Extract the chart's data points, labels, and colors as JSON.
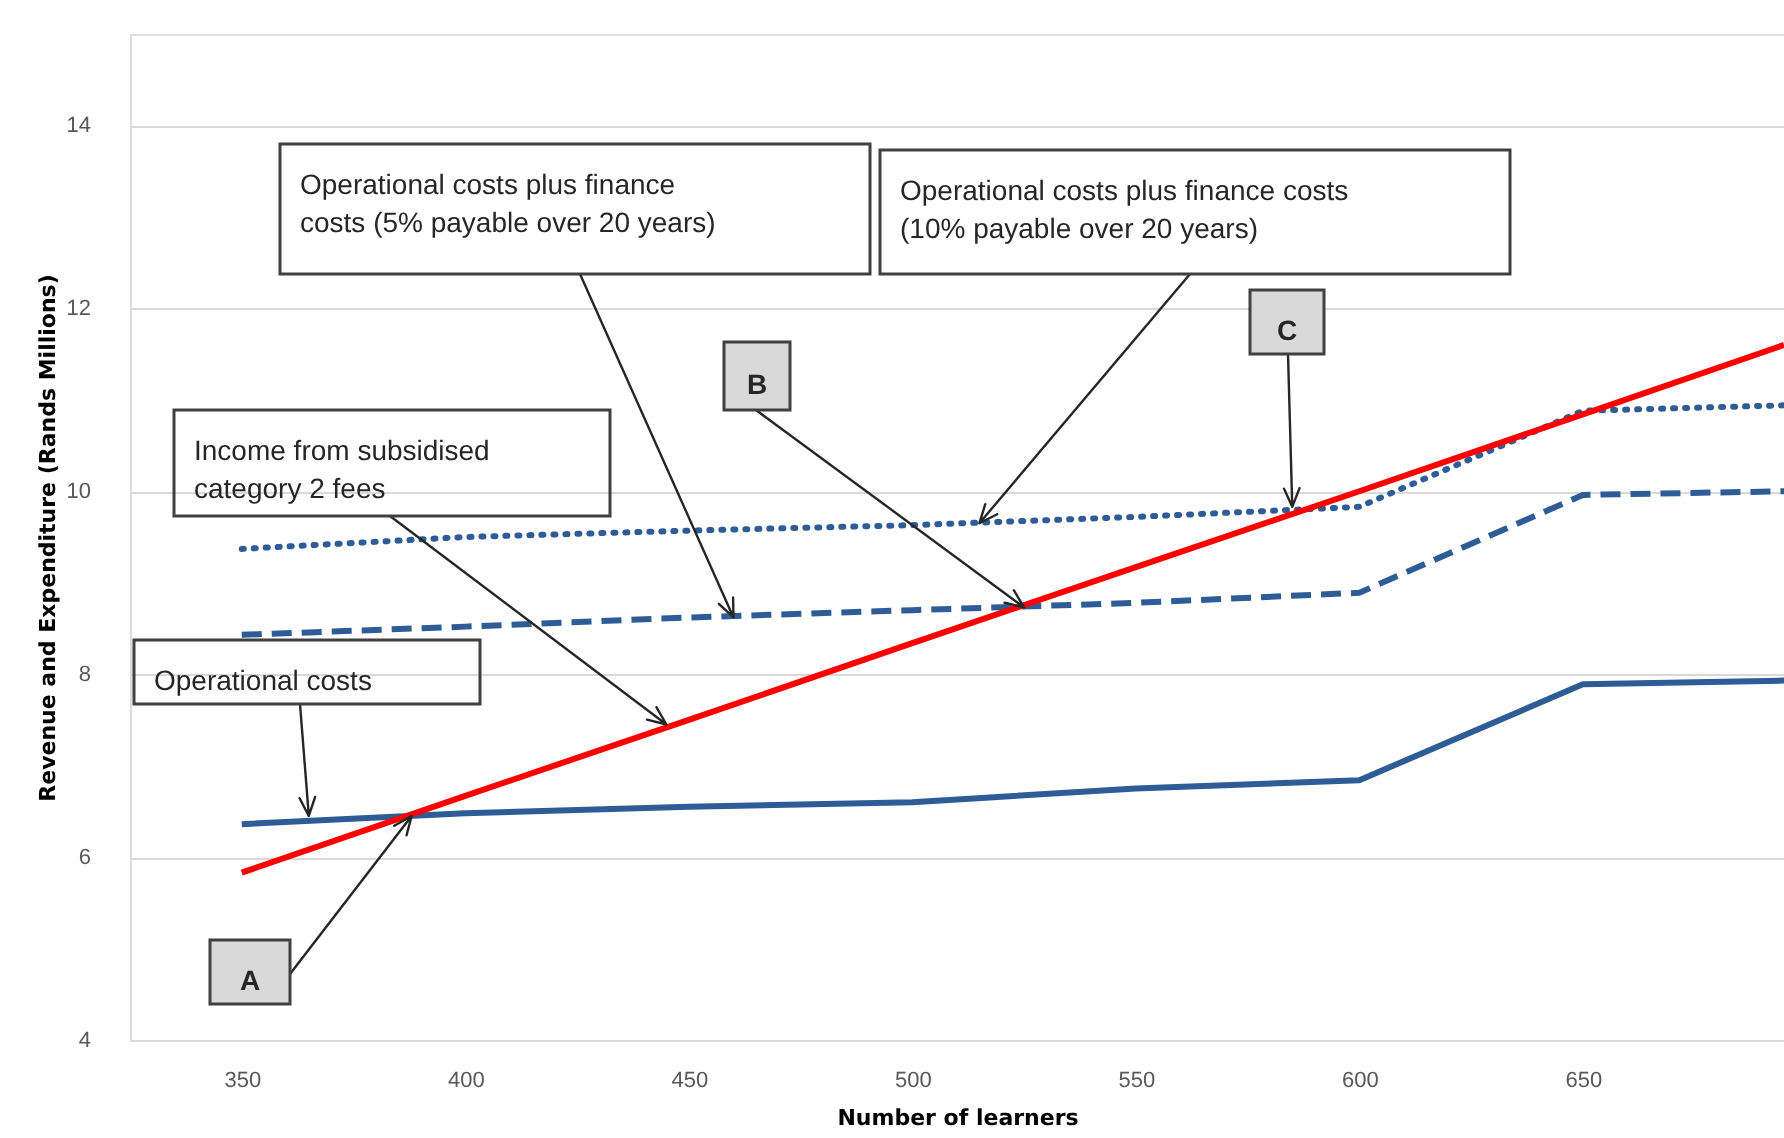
{
  "chart_data": {
    "type": "line",
    "xlabel": "Number of learners",
    "ylabel": "Revenue and Expenditure (Rands Millions)",
    "xlim": [
      325,
      695
    ],
    "ylim": [
      4,
      15
    ],
    "xticks": [
      350,
      400,
      450,
      500,
      550,
      600,
      650
    ],
    "yticks": [
      4,
      6,
      8,
      10,
      12,
      14
    ],
    "grid": "y",
    "legend": false,
    "marker": "none",
    "x": [
      350,
      400,
      450,
      500,
      550,
      600,
      650,
      695
    ],
    "series": [
      {
        "color": "#2e5c96",
        "line_style": "solid",
        "values": [
          6.36,
          6.48,
          6.55,
          6.6,
          6.75,
          6.84,
          7.89,
          7.93
        ]
      },
      {
        "color": "#2e5c96",
        "line_style": "dashed",
        "values": [
          8.43,
          8.52,
          8.62,
          8.7,
          8.78,
          8.89,
          9.96,
          10.0
        ]
      },
      {
        "color": "#2e5c96",
        "line_style": "dotted",
        "values": [
          9.37,
          9.5,
          9.57,
          9.63,
          9.72,
          9.83,
          10.88,
          10.94
        ]
      },
      {
        "color": "#ff0000",
        "line_style": "solid",
        "values": [
          5.83,
          6.67,
          7.5,
          8.34,
          9.17,
          10.0,
          10.84,
          11.6
        ]
      }
    ],
    "annotations": [
      {
        "text": "Operational costs",
        "x": 365,
        "y": 6.45
      },
      {
        "text": "A",
        "x": 388,
        "y": 6.45
      },
      {
        "text": "Income from subsidised category 2 fees",
        "x": 445,
        "y": 7.45
      },
      {
        "text": "Operational costs plus finance costs (5% payable over 20 years)",
        "x": 460,
        "y": 8.62
      },
      {
        "text": "B",
        "x": 525,
        "y": 8.73
      },
      {
        "text": "Operational costs plus finance costs (10% payable over 20 years)",
        "x": 515,
        "y": 9.65
      },
      {
        "text": "C",
        "x": 585,
        "y": 9.83
      }
    ]
  }
}
